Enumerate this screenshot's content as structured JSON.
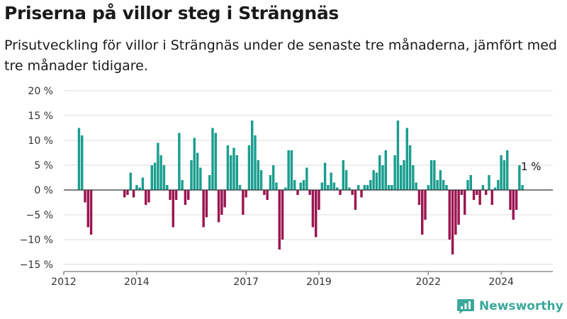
{
  "title": "Priserna på villor steg i Strängnäs",
  "subtitle": "Prisutveckling för villor i Strängnäs under de senaste tre månaderna, jämfört med tre månader tidigare.",
  "brand": {
    "name": "Newsworthy",
    "icon": "newsworthy-logo-icon",
    "color": "#3aa89a"
  },
  "colors": {
    "positive": "#1a9e8f",
    "negative": "#9b1550",
    "grid": "#dddddd",
    "zero_line": "#333333"
  },
  "chart_data": {
    "type": "bar",
    "title": "Priserna på villor steg i Strängnäs",
    "subtitle": "Prisutveckling för villor i Strängnäs under de senaste tre månaderna, jämfört med tre månader tidigare.",
    "xlabel": "",
    "ylabel": "",
    "unit": "%",
    "ylim": [
      -15,
      20
    ],
    "yticks": [
      -15,
      -10,
      -5,
      0,
      5,
      10,
      15,
      20
    ],
    "ytick_labels": [
      "−15 %",
      "−10 %",
      "−5 %",
      "0 %",
      "5 %",
      "10 %",
      "15 %",
      "20 %"
    ],
    "xticks": [
      2012,
      2014,
      2017,
      2019,
      2022,
      2024
    ],
    "xlim": [
      "2012-01",
      "2025-06"
    ],
    "grid": true,
    "annotation": {
      "text": "1 %",
      "date": "2024-11",
      "value": 1
    },
    "series": [
      {
        "values": [
          [
            "2012-06",
            12.5
          ],
          [
            "2012-07",
            11
          ],
          [
            "2012-08",
            -2.5
          ],
          [
            "2012-09",
            -7.5
          ],
          [
            "2012-10",
            -9
          ],
          [
            "2013-09",
            -1.5
          ],
          [
            "2013-10",
            -1
          ],
          [
            "2013-11",
            3.5
          ],
          [
            "2013-12",
            -1.5
          ],
          [
            "2014-01",
            1
          ],
          [
            "2014-02",
            0.5
          ],
          [
            "2014-03",
            2.5
          ],
          [
            "2014-04",
            -3
          ],
          [
            "2014-05",
            -2.5
          ],
          [
            "2014-06",
            5
          ],
          [
            "2014-07",
            5.5
          ],
          [
            "2014-08",
            9.5
          ],
          [
            "2014-09",
            7
          ],
          [
            "2014-10",
            5
          ],
          [
            "2014-11",
            1
          ],
          [
            "2014-12",
            -2
          ],
          [
            "2015-01",
            -7.5
          ],
          [
            "2015-02",
            -2
          ],
          [
            "2015-03",
            11.5
          ],
          [
            "2015-04",
            2
          ],
          [
            "2015-05",
            -3
          ],
          [
            "2015-06",
            -2
          ],
          [
            "2015-07",
            6
          ],
          [
            "2015-08",
            10.5
          ],
          [
            "2015-09",
            7.5
          ],
          [
            "2015-10",
            4.5
          ],
          [
            "2015-11",
            -7.5
          ],
          [
            "2015-12",
            -5.5
          ],
          [
            "2016-01",
            3
          ],
          [
            "2016-02",
            12.5
          ],
          [
            "2016-03",
            11.5
          ],
          [
            "2016-04",
            -6.5
          ],
          [
            "2016-05",
            -5
          ],
          [
            "2016-06",
            -3.5
          ],
          [
            "2016-07",
            9
          ],
          [
            "2016-08",
            7
          ],
          [
            "2016-09",
            8.5
          ],
          [
            "2016-10",
            7
          ],
          [
            "2016-11",
            1
          ],
          [
            "2016-12",
            -5
          ],
          [
            "2017-01",
            -1.5
          ],
          [
            "2017-02",
            9
          ],
          [
            "2017-03",
            14
          ],
          [
            "2017-04",
            11
          ],
          [
            "2017-05",
            6
          ],
          [
            "2017-06",
            4
          ],
          [
            "2017-07",
            -1
          ],
          [
            "2017-08",
            -2
          ],
          [
            "2017-09",
            3
          ],
          [
            "2017-10",
            5
          ],
          [
            "2017-11",
            1.5
          ],
          [
            "2017-12",
            -12
          ],
          [
            "2018-01",
            -10
          ],
          [
            "2018-02",
            0.5
          ],
          [
            "2018-03",
            8
          ],
          [
            "2018-04",
            8
          ],
          [
            "2018-05",
            2
          ],
          [
            "2018-06",
            -1
          ],
          [
            "2018-07",
            1.5
          ],
          [
            "2018-08",
            2
          ],
          [
            "2018-09",
            4.5
          ],
          [
            "2018-10",
            -1
          ],
          [
            "2018-11",
            -7.5
          ],
          [
            "2018-12",
            -9.5
          ],
          [
            "2019-01",
            -4
          ],
          [
            "2019-02",
            1.5
          ],
          [
            "2019-03",
            5.5
          ],
          [
            "2019-04",
            1
          ],
          [
            "2019-05",
            3.5
          ],
          [
            "2019-06",
            1.5
          ],
          [
            "2019-07",
            0.5
          ],
          [
            "2019-08",
            -1
          ],
          [
            "2019-09",
            6
          ],
          [
            "2019-10",
            4
          ],
          [
            "2019-11",
            0.5
          ],
          [
            "2019-12",
            -1
          ],
          [
            "2020-01",
            -4
          ],
          [
            "2020-02",
            1
          ],
          [
            "2020-03",
            -1.5
          ],
          [
            "2020-04",
            1
          ],
          [
            "2020-05",
            1
          ],
          [
            "2020-06",
            2
          ],
          [
            "2020-07",
            4
          ],
          [
            "2020-08",
            3.5
          ],
          [
            "2020-09",
            7
          ],
          [
            "2020-10",
            5
          ],
          [
            "2020-11",
            8
          ],
          [
            "2020-12",
            1
          ],
          [
            "2021-01",
            1
          ],
          [
            "2021-02",
            7
          ],
          [
            "2021-03",
            14
          ],
          [
            "2021-04",
            5
          ],
          [
            "2021-05",
            6
          ],
          [
            "2021-06",
            12.5
          ],
          [
            "2021-07",
            9
          ],
          [
            "2021-08",
            5
          ],
          [
            "2021-09",
            1.5
          ],
          [
            "2021-10",
            -3
          ],
          [
            "2021-11",
            -9
          ],
          [
            "2021-12",
            -6
          ],
          [
            "2022-01",
            1
          ],
          [
            "2022-02",
            6
          ],
          [
            "2022-03",
            6
          ],
          [
            "2022-04",
            2
          ],
          [
            "2022-05",
            4
          ],
          [
            "2022-06",
            2
          ],
          [
            "2022-07",
            1
          ],
          [
            "2022-08",
            -10
          ],
          [
            "2022-09",
            -13
          ],
          [
            "2022-10",
            -9
          ],
          [
            "2022-11",
            -7
          ],
          [
            "2022-12",
            -1
          ],
          [
            "2023-01",
            -5
          ],
          [
            "2023-02",
            2
          ],
          [
            "2023-03",
            3
          ],
          [
            "2023-04",
            -2
          ],
          [
            "2023-05",
            -1
          ],
          [
            "2023-06",
            -3
          ],
          [
            "2023-07",
            1
          ],
          [
            "2023-08",
            -1
          ],
          [
            "2023-09",
            3
          ],
          [
            "2023-10",
            -3
          ],
          [
            "2023-11",
            0.5
          ],
          [
            "2023-12",
            2
          ],
          [
            "2024-01",
            7
          ],
          [
            "2024-02",
            6
          ],
          [
            "2024-03",
            8
          ],
          [
            "2024-04",
            -4
          ],
          [
            "2024-05",
            -6
          ],
          [
            "2024-06",
            -4
          ],
          [
            "2024-07",
            5
          ],
          [
            "2024-08",
            1
          ]
        ]
      }
    ]
  }
}
